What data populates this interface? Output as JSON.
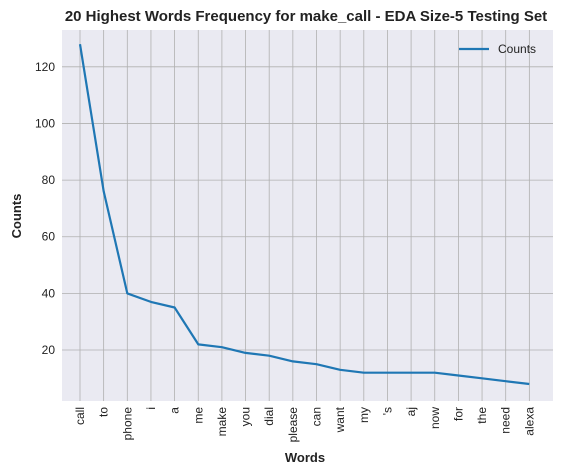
{
  "chart_data": {
    "type": "line",
    "title": "20 Highest Words Frequency for make_call - EDA Size-5 Testing Set",
    "xlabel": "Words",
    "ylabel": "Counts",
    "categories": [
      "call",
      "to",
      "phone",
      "i",
      "a",
      "me",
      "make",
      "you",
      "dial",
      "please",
      "can",
      "want",
      "my",
      "'s",
      "aj",
      "now",
      "for",
      "the",
      "need",
      "alexa"
    ],
    "series": [
      {
        "name": "Counts",
        "values": [
          128,
          76,
          40,
          37,
          35,
          22,
          21,
          19,
          18,
          16,
          15,
          13,
          12,
          12,
          12,
          12,
          11,
          10,
          9,
          8
        ]
      }
    ],
    "ylim": [
      2,
      133
    ],
    "yticks": [
      20,
      40,
      60,
      80,
      100,
      120
    ],
    "grid": true,
    "legend_position": "top-right",
    "colors": {
      "line": "#1f77b4",
      "background": "#eaeaf2",
      "grid": "#b0b0b0"
    }
  }
}
